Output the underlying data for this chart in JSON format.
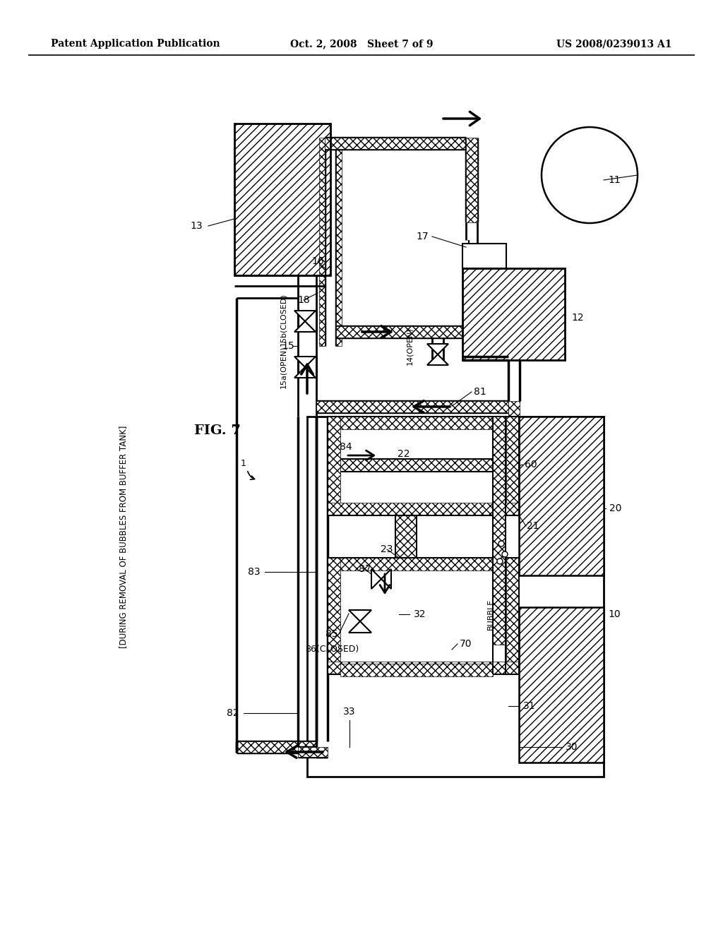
{
  "header_left": "Patent Application Publication",
  "header_center": "Oct. 2, 2008   Sheet 7 of 9",
  "header_right": "US 2008/0239013 A1",
  "fig_label": "FIG. 7",
  "caption": "[DURING REMOVAL OF BUBBLES FROM BUFFER TANK]",
  "bg_color": "#ffffff"
}
